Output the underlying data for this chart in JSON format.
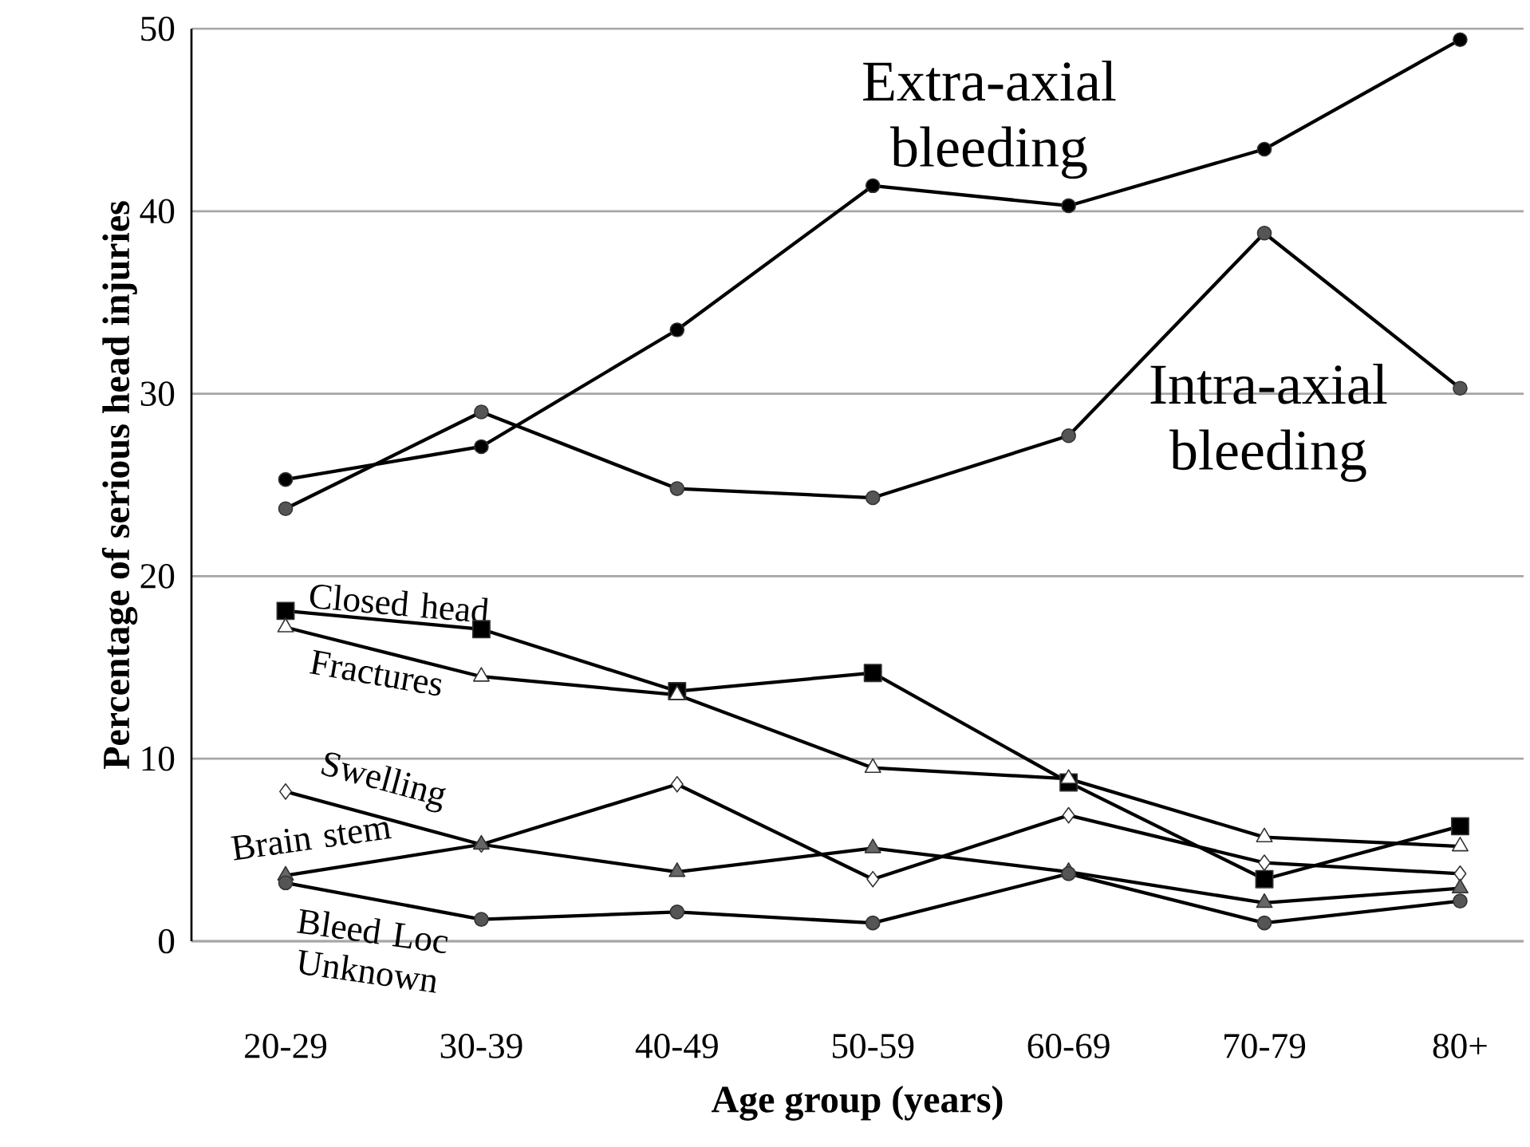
{
  "chart_data": {
    "type": "line",
    "xlabel": "Age group (years)",
    "ylabel": "Percentage of serious head injuries",
    "categories": [
      "20-29",
      "30-39",
      "40-49",
      "50-59",
      "60-69",
      "70-79",
      "80+"
    ],
    "ylim": [
      0,
      50
    ],
    "yticks": [
      0,
      10,
      20,
      30,
      40,
      50
    ],
    "grid": "y",
    "legend": false,
    "series": [
      {
        "name": "Extra-axial bleeding",
        "color": "#000000",
        "marker": "circle",
        "values": [
          25.3,
          27.1,
          33.5,
          41.4,
          40.3,
          43.4,
          49.4
        ]
      },
      {
        "name": "Intra-axial bleeding",
        "color": "#555555",
        "marker": "circle",
        "values": [
          23.7,
          29.0,
          24.8,
          24.3,
          27.7,
          38.8,
          30.3
        ]
      },
      {
        "name": "Closed head",
        "color": "#000000",
        "marker": "square",
        "values": [
          18.1,
          17.1,
          13.7,
          14.7,
          8.7,
          3.4,
          6.3
        ]
      },
      {
        "name": "Fractures",
        "color": "#ffffff",
        "marker": "triangle",
        "values": [
          17.2,
          14.5,
          13.5,
          9.5,
          8.9,
          5.7,
          5.2
        ]
      },
      {
        "name": "Swelling",
        "color": "#ffffff",
        "marker": "diamond",
        "values": [
          8.2,
          5.3,
          8.6,
          3.4,
          6.9,
          4.3,
          3.7
        ]
      },
      {
        "name": "Brain stem",
        "color": "#666666",
        "marker": "triangle",
        "values": [
          3.6,
          5.3,
          3.8,
          5.1,
          3.8,
          2.1,
          2.9
        ]
      },
      {
        "name": "Bleed Loc Unknown",
        "color": "#555555",
        "marker": "circle",
        "values": [
          3.2,
          1.2,
          1.6,
          1.0,
          3.7,
          1.0,
          2.2
        ]
      }
    ]
  }
}
